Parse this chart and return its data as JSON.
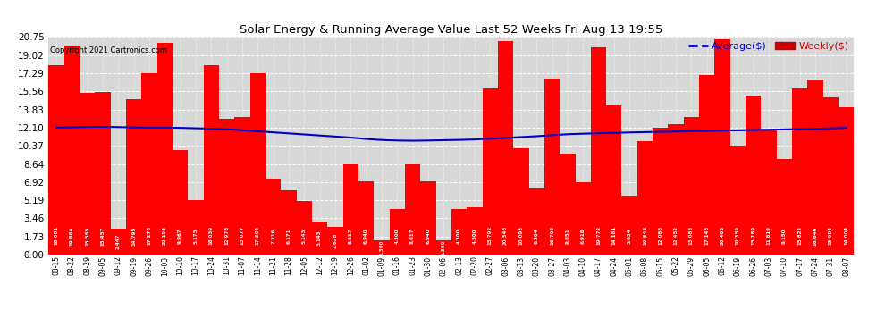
{
  "title": "Solar Energy & Running Average Value Last 52 Weeks Fri Aug 13 19:55",
  "copyright": "Copyright 2021 Cartronics.com",
  "legend_average": "Average($)",
  "legend_weekly": "Weekly($)",
  "bar_color": "#ff0000",
  "avg_line_color": "#0000cc",
  "weekly_color": "#cc0000",
  "background_color": "#ffffff",
  "plot_bg_color": "#d8d8d8",
  "grid_color": "#bbbbbb",
  "yticks": [
    0.0,
    1.73,
    3.46,
    5.19,
    6.92,
    8.64,
    10.37,
    12.1,
    13.83,
    15.56,
    17.29,
    19.02,
    20.75
  ],
  "categories": [
    "08-15",
    "08-22",
    "08-29",
    "09-05",
    "09-12",
    "09-19",
    "09-26",
    "10-03",
    "10-10",
    "10-17",
    "10-24",
    "10-31",
    "11-07",
    "11-14",
    "11-21",
    "11-28",
    "12-05",
    "12-12",
    "12-19",
    "12-26",
    "01-02",
    "01-09",
    "01-16",
    "01-23",
    "01-30",
    "02-06",
    "02-13",
    "02-20",
    "02-27",
    "03-06",
    "03-13",
    "03-20",
    "03-27",
    "04-03",
    "04-10",
    "04-17",
    "04-24",
    "05-01",
    "05-08",
    "05-15",
    "05-22",
    "05-29",
    "06-05",
    "06-12",
    "06-19",
    "06-26",
    "07-03",
    "07-10",
    "07-17",
    "07-24",
    "07-31",
    "08-07"
  ],
  "weekly_values": [
    18.081,
    19.864,
    15.385,
    15.457,
    2.447,
    14.795,
    17.278,
    20.195,
    9.967,
    5.173,
    18.039,
    12.978,
    13.077,
    17.304,
    7.216,
    6.171,
    5.143,
    3.143,
    2.628,
    8.617,
    6.94,
    1.38,
    4.3,
    8.617,
    6.94,
    1.38,
    4.3,
    4.5,
    15.792,
    20.346,
    10.095,
    6.304,
    16.792,
    9.651,
    6.918,
    19.772,
    14.181,
    5.634,
    10.846,
    12.086,
    12.452,
    13.085,
    17.148,
    20.485,
    10.359,
    15.189,
    11.819,
    9.15,
    15.822,
    16.646,
    15.004,
    14.004
  ],
  "avg_values": [
    12.1,
    12.13,
    12.16,
    12.18,
    12.15,
    12.12,
    12.1,
    12.1,
    12.08,
    12.04,
    12.0,
    11.95,
    11.85,
    11.75,
    11.65,
    11.55,
    11.45,
    11.35,
    11.25,
    11.15,
    11.02,
    10.92,
    10.87,
    10.85,
    10.87,
    10.9,
    10.93,
    10.97,
    11.05,
    11.12,
    11.2,
    11.28,
    11.38,
    11.47,
    11.52,
    11.56,
    11.6,
    11.64,
    11.67,
    11.7,
    11.73,
    11.76,
    11.79,
    11.82,
    11.84,
    11.87,
    11.9,
    11.93,
    11.96,
    11.99,
    12.03,
    12.08
  ]
}
